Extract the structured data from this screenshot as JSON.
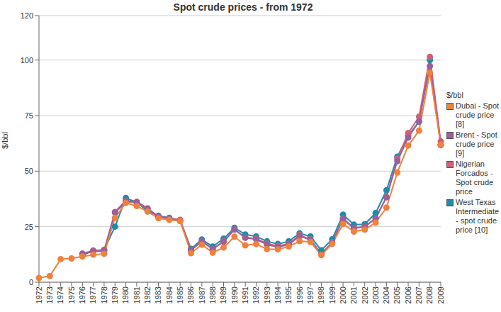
{
  "chart_data": {
    "type": "line",
    "title": "Spot crude prices - from 1972",
    "y_label": "$/bbl",
    "legend_title": "$/bbl",
    "legend": "right",
    "grid": true,
    "marker": "circle",
    "categories": [
      "1972",
      "1973",
      "1974",
      "1975",
      "1976",
      "1977",
      "1978",
      "1979",
      "1980",
      "1981",
      "1982",
      "1983",
      "1984",
      "1985",
      "1986",
      "1987",
      "1988",
      "1989",
      "1990",
      "1991",
      "1992",
      "1993",
      "1994",
      "1995",
      "1996",
      "1997",
      "1998",
      "1999",
      "2000",
      "2001",
      "2002",
      "2003",
      "2004",
      "2005",
      "2006",
      "2007",
      "2008",
      "2009"
    ],
    "ylim": [
      0,
      120
    ],
    "yticks": [
      0,
      25,
      50,
      75,
      100,
      120
    ],
    "series": [
      {
        "name": "Dubai - Spot crude price [8]",
        "color": "#f0813c",
        "values": [
          1.9,
          2.8,
          10.4,
          10.7,
          11.6,
          12.4,
          12.8,
          29.0,
          35.7,
          34.3,
          31.8,
          28.8,
          28.1,
          27.5,
          13.1,
          16.9,
          13.3,
          15.6,
          20.5,
          16.6,
          17.2,
          14.9,
          14.8,
          16.1,
          18.5,
          18.1,
          12.2,
          17.3,
          26.2,
          22.8,
          23.7,
          26.8,
          33.6,
          49.4,
          61.5,
          68.2,
          94.3,
          61.9
        ]
      },
      {
        "name": "Brent - Spot crude price [9]",
        "color": "#9b5f9b",
        "values": [
          null,
          null,
          null,
          null,
          12.8,
          13.9,
          14.0,
          31.6,
          36.8,
          35.9,
          33.0,
          29.6,
          28.8,
          27.6,
          14.4,
          18.4,
          14.9,
          18.2,
          23.7,
          20.0,
          19.3,
          17.0,
          15.8,
          17.0,
          20.7,
          19.1,
          12.7,
          17.9,
          28.7,
          24.5,
          25.0,
          28.8,
          38.3,
          54.5,
          65.1,
          72.4,
          97.3,
          61.7
        ]
      },
      {
        "name": "Nigerian Forcados - Spot crude price",
        "color": "#d0607a",
        "values": [
          null,
          null,
          null,
          null,
          12.9,
          14.3,
          14.4,
          31.3,
          36.0,
          36.2,
          33.3,
          29.5,
          28.8,
          28.1,
          14.5,
          18.4,
          15.0,
          18.4,
          23.8,
          20.1,
          19.6,
          17.4,
          16.3,
          17.3,
          21.2,
          19.3,
          12.6,
          18.0,
          28.4,
          24.2,
          25.0,
          28.7,
          38.3,
          55.6,
          67.1,
          74.5,
          101.4,
          63.4
        ]
      },
      {
        "name": "West Texas Intermediate - spot crude price [10]",
        "color": "#1e8caa",
        "values": [
          null,
          null,
          null,
          null,
          12.2,
          14.2,
          14.6,
          25.0,
          37.9,
          36.0,
          32.0,
          29.9,
          29.0,
          27.9,
          15.0,
          19.2,
          16.0,
          19.6,
          24.5,
          21.5,
          20.6,
          18.4,
          17.2,
          18.4,
          22.0,
          20.6,
          14.4,
          19.3,
          30.4,
          25.9,
          26.1,
          31.1,
          41.4,
          56.5,
          66.0,
          72.3,
          100.0,
          61.9
        ]
      }
    ]
  }
}
